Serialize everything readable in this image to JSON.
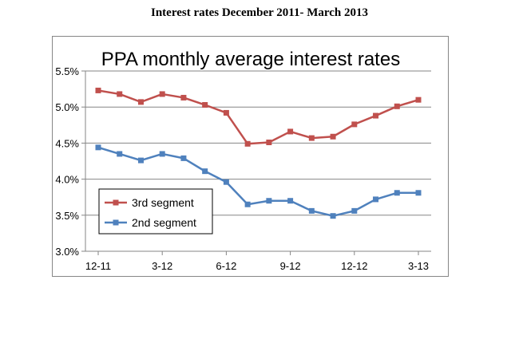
{
  "page": {
    "caption": "Interest rates December 2011- March 2013"
  },
  "chart_data": {
    "type": "line",
    "title": "PPA monthly average interest rates",
    "xlabel": "",
    "ylabel": "",
    "x": [
      "12-11",
      "1-12",
      "2-12",
      "3-12",
      "4-12",
      "5-12",
      "6-12",
      "7-12",
      "8-12",
      "9-12",
      "10-12",
      "11-12",
      "12-12",
      "1-13",
      "2-13",
      "3-13"
    ],
    "x_tick_labels": [
      "12-11",
      "3-12",
      "6-12",
      "9-12",
      "12-12",
      "3-13"
    ],
    "ylim": [
      3.0,
      5.5
    ],
    "y_tick_labels": [
      "3.0%",
      "3.5%",
      "4.0%",
      "4.5%",
      "5.0%",
      "5.5%"
    ],
    "y_ticks": [
      3.0,
      3.5,
      4.0,
      4.5,
      5.0,
      5.5
    ],
    "grid": true,
    "legend_position": "lower-left",
    "series": [
      {
        "name": "3rd segment",
        "color": "#c0504d",
        "marker": "square",
        "values": [
          5.23,
          5.18,
          5.07,
          5.18,
          5.13,
          5.03,
          4.92,
          4.49,
          4.51,
          4.66,
          4.57,
          4.59,
          4.76,
          4.88,
          5.01,
          5.1
        ]
      },
      {
        "name": "2nd segment",
        "color": "#4f81bd",
        "marker": "square",
        "values": [
          4.44,
          4.35,
          4.26,
          4.35,
          4.29,
          4.11,
          3.96,
          3.65,
          3.7,
          3.7,
          3.56,
          3.49,
          3.56,
          3.72,
          3.81,
          3.81
        ]
      }
    ]
  }
}
